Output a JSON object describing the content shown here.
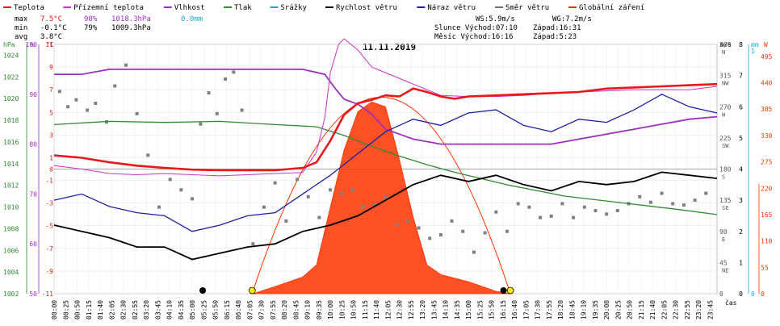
{
  "legend": [
    {
      "label": "Teplota",
      "color": "#e8191b"
    },
    {
      "label": "Přízemní teplota",
      "color": "#cc33cc"
    },
    {
      "label": "Vlhkost",
      "color": "#9d2fbf"
    },
    {
      "label": "Tlak",
      "color": "#2e8b2e"
    },
    {
      "label": "Srážky",
      "color": "#19a9c9"
    },
    {
      "label": "Rychlost větru",
      "color": "#000000"
    },
    {
      "label": "Náraz větru",
      "color": "#1f1fa0"
    },
    {
      "label": "Směr větru",
      "color": "#707070"
    },
    {
      "label": "Globální záření",
      "color": "#ff3300"
    }
  ],
  "stats": {
    "max": {
      "label": "max",
      "temp": "7.5°C",
      "hum": "98%",
      "press": "1018.3hPa",
      "rain": "0.0mm"
    },
    "min": {
      "label": "min",
      "temp": "-0.1°C",
      "hum": "79%",
      "press": "1009.3hPa"
    },
    "avg": {
      "label": "avg",
      "temp": "3.8°C"
    }
  },
  "info": {
    "ws": "WS:5.9m/s",
    "wg": "WG:7.2m/s",
    "sun_rise": "Slunce Východ:07:10",
    "sun_set": "Západ:16:31",
    "moon_rise": "Měsíc  Východ:16:16",
    "moon_set": "Západ:5:23"
  },
  "chart_data": {
    "type": "line",
    "title": "11.11.2019",
    "xlabel": "čas",
    "x_tick_labels": [
      "00:00",
      "00:25",
      "00:50",
      "01:15",
      "01:40",
      "02:05",
      "02:30",
      "02:55",
      "03:20",
      "03:45",
      "04:10",
      "04:35",
      "05:00",
      "05:25",
      "05:50",
      "06:15",
      "06:40",
      "07:05",
      "07:30",
      "07:55",
      "08:20",
      "08:45",
      "09:10",
      "09:35",
      "10:00",
      "10:25",
      "10:50",
      "11:15",
      "11:40",
      "12:05",
      "12:30",
      "12:55",
      "13:20",
      "13:45",
      "14:10",
      "14:35",
      "15:00",
      "15:25",
      "15:50",
      "16:15",
      "16:40",
      "17:05",
      "17:30",
      "17:55",
      "18:20",
      "18:45",
      "19:10",
      "19:35",
      "20:00",
      "20:25",
      "20:50",
      "21:15",
      "21:40",
      "22:05",
      "22:30",
      "22:55",
      "23:20",
      "23:45"
    ],
    "axes": {
      "pressure": {
        "unit": "hPa",
        "ticks": [
          "1024",
          "1022",
          "1020",
          "1018",
          "1016",
          "1014",
          "1012",
          "1010",
          "1008",
          "1006",
          "1004",
          "1002"
        ]
      },
      "humidity": {
        "unit": "%",
        "ticks": [
          "100",
          "90",
          "80",
          "70",
          "60",
          "50"
        ]
      },
      "temperature": {
        "unit": "°C",
        "ticks": [
          "11",
          "9",
          "7",
          "5",
          "3",
          "1",
          "-1",
          "-3",
          "-5",
          "-7",
          "-9",
          "-11"
        ],
        "extra_zero": "0"
      },
      "direction": {
        "unit": "m/s",
        "ticks": [
          "360",
          "315",
          "270",
          "225",
          "180",
          "135",
          "90",
          "45",
          "0"
        ],
        "labels": [
          "N",
          "NW",
          "W",
          "SW",
          "S",
          "SE",
          "E",
          "NE",
          ""
        ]
      },
      "wind": {
        "unit": "m/s",
        "ticks": [
          "8",
          "7",
          "6",
          "5",
          "4",
          "3",
          "2",
          "1",
          "0"
        ]
      },
      "rain": {
        "unit": "mm",
        "ticks": [
          "1",
          "0"
        ]
      },
      "radiation": {
        "unit": "W",
        "ticks": [
          "495",
          "440",
          "385",
          "330",
          "275",
          "220",
          "165",
          "110",
          "55",
          "0"
        ]
      }
    },
    "ranges": {
      "pressure": [
        1002,
        1025
      ],
      "humidity": [
        50,
        100
      ],
      "temperature": [
        -11,
        11
      ],
      "wind": [
        0,
        8
      ],
      "direction": [
        0,
        360
      ],
      "radiation": [
        0,
        520
      ]
    },
    "series": [
      {
        "name": "Teplota",
        "points": [
          [
            0,
            1.2
          ],
          [
            1,
            1.0
          ],
          [
            2,
            0.6
          ],
          [
            3,
            0.3
          ],
          [
            4,
            0.1
          ],
          [
            5,
            -0.05
          ],
          [
            6,
            -0.1
          ],
          [
            7,
            -0.1
          ],
          [
            8,
            -0.1
          ],
          [
            8.5,
            0.0
          ],
          [
            9,
            0.1
          ],
          [
            9.5,
            0.6
          ],
          [
            10,
            2.5
          ],
          [
            10.5,
            4.8
          ],
          [
            11,
            5.8
          ],
          [
            11.5,
            6.1
          ],
          [
            12,
            6.5
          ],
          [
            12.5,
            6.4
          ],
          [
            13,
            7.1
          ],
          [
            13.5,
            6.8
          ],
          [
            14,
            6.4
          ],
          [
            14.5,
            6.2
          ],
          [
            15,
            6.4
          ],
          [
            16,
            6.5
          ],
          [
            17,
            6.6
          ],
          [
            18,
            6.7
          ],
          [
            19,
            6.8
          ],
          [
            20,
            7.1
          ],
          [
            21,
            7.2
          ],
          [
            22,
            7.3
          ],
          [
            23,
            7.4
          ],
          [
            24,
            7.5
          ]
        ]
      },
      {
        "name": "Přízemní teplota",
        "points": [
          [
            0,
            0.3
          ],
          [
            1,
            0.0
          ],
          [
            2,
            -0.4
          ],
          [
            3,
            -0.5
          ],
          [
            4,
            -0.4
          ],
          [
            5,
            -0.5
          ],
          [
            6,
            -0.6
          ],
          [
            7,
            -0.5
          ],
          [
            8,
            -0.4
          ],
          [
            9,
            -0.3
          ],
          [
            9.5,
            1.5
          ],
          [
            9.8,
            4.5
          ],
          [
            10,
            8.5
          ],
          [
            10.3,
            11.0
          ],
          [
            10.5,
            11.5
          ],
          [
            11,
            10.5
          ],
          [
            11.5,
            9.0
          ],
          [
            12,
            8.5
          ],
          [
            12.5,
            8.0
          ],
          [
            13,
            7.5
          ],
          [
            13.5,
            7.0
          ],
          [
            14,
            6.5
          ],
          [
            15,
            6.4
          ],
          [
            16,
            6.4
          ],
          [
            17,
            6.5
          ],
          [
            18,
            6.7
          ],
          [
            19,
            6.8
          ],
          [
            20,
            6.9
          ],
          [
            21,
            7.0
          ],
          [
            22,
            7.0
          ],
          [
            23,
            7.0
          ],
          [
            24,
            7.3
          ]
        ]
      },
      {
        "name": "Vlhkost",
        "points": [
          [
            0,
            94
          ],
          [
            1,
            94
          ],
          [
            2,
            95
          ],
          [
            3,
            95
          ],
          [
            4,
            95
          ],
          [
            5,
            95
          ],
          [
            6,
            95
          ],
          [
            7,
            95
          ],
          [
            8,
            95
          ],
          [
            9,
            95
          ],
          [
            9.8,
            94
          ],
          [
            10.2,
            91
          ],
          [
            10.5,
            89
          ],
          [
            11,
            88
          ],
          [
            11.5,
            86
          ],
          [
            12,
            83
          ],
          [
            12.5,
            82
          ],
          [
            13,
            81
          ],
          [
            14,
            80
          ],
          [
            15,
            80
          ],
          [
            16,
            80
          ],
          [
            17,
            80
          ],
          [
            18,
            80
          ],
          [
            19,
            81
          ],
          [
            20,
            82
          ],
          [
            21,
            83
          ],
          [
            22,
            84
          ],
          [
            23,
            85
          ],
          [
            24,
            85.5
          ]
        ]
      },
      {
        "name": "Tlak",
        "points": [
          [
            0,
            1017.6
          ],
          [
            2,
            1017.9
          ],
          [
            4,
            1017.8
          ],
          [
            6,
            1017.9
          ],
          [
            8,
            1017.6
          ],
          [
            9.5,
            1017.4
          ],
          [
            10.5,
            1016.6
          ],
          [
            11.5,
            1015.6
          ],
          [
            12.5,
            1014.7
          ],
          [
            13.5,
            1013.9
          ],
          [
            14.5,
            1013.2
          ],
          [
            15.5,
            1012.6
          ],
          [
            16.5,
            1012.0
          ],
          [
            17.5,
            1011.5
          ],
          [
            18.5,
            1011.0
          ],
          [
            19.5,
            1010.7
          ],
          [
            20.5,
            1010.4
          ],
          [
            21.5,
            1010.1
          ],
          [
            22.5,
            1009.8
          ],
          [
            24,
            1009.3
          ]
        ]
      },
      {
        "name": "Rychlost větru",
        "points": [
          [
            0,
            2.2
          ],
          [
            1,
            2.0
          ],
          [
            2,
            1.8
          ],
          [
            3,
            1.5
          ],
          [
            4,
            1.5
          ],
          [
            5,
            1.1
          ],
          [
            6,
            1.3
          ],
          [
            7,
            1.5
          ],
          [
            8,
            1.6
          ],
          [
            9,
            2.0
          ],
          [
            10,
            2.2
          ],
          [
            11,
            2.5
          ],
          [
            12,
            3.0
          ],
          [
            13,
            3.5
          ],
          [
            14,
            3.8
          ],
          [
            15,
            3.6
          ],
          [
            16,
            3.8
          ],
          [
            17,
            3.5
          ],
          [
            18,
            3.3
          ],
          [
            19,
            3.6
          ],
          [
            20,
            3.5
          ],
          [
            21,
            3.6
          ],
          [
            22,
            3.9
          ],
          [
            23,
            3.8
          ],
          [
            24,
            3.7
          ]
        ]
      },
      {
        "name": "Náraz větru",
        "points": [
          [
            0,
            3.0
          ],
          [
            1,
            3.2
          ],
          [
            2,
            2.8
          ],
          [
            3,
            2.6
          ],
          [
            4,
            2.5
          ],
          [
            5,
            2.0
          ],
          [
            6,
            2.2
          ],
          [
            7,
            2.5
          ],
          [
            8,
            2.6
          ],
          [
            9,
            3.2
          ],
          [
            10,
            3.8
          ],
          [
            11,
            4.5
          ],
          [
            12,
            5.2
          ],
          [
            13,
            5.6
          ],
          [
            14,
            5.4
          ],
          [
            15,
            5.8
          ],
          [
            16,
            5.9
          ],
          [
            17,
            5.4
          ],
          [
            18,
            5.2
          ],
          [
            19,
            5.6
          ],
          [
            20,
            5.5
          ],
          [
            21,
            5.9
          ],
          [
            22,
            6.4
          ],
          [
            23,
            6.0
          ],
          [
            24,
            5.8
          ]
        ]
      },
      {
        "name": "Globální záření",
        "points": [
          [
            7.2,
            0
          ],
          [
            8,
            15
          ],
          [
            9,
            35
          ],
          [
            9.5,
            60
          ],
          [
            10,
            180
          ],
          [
            10.5,
            300
          ],
          [
            11,
            380
          ],
          [
            11.5,
            400
          ],
          [
            12,
            390
          ],
          [
            12.5,
            280
          ],
          [
            13,
            160
          ],
          [
            13.5,
            60
          ],
          [
            14,
            40
          ],
          [
            15,
            25
          ],
          [
            16,
            5
          ],
          [
            16.5,
            0
          ]
        ]
      }
    ],
    "direction_points": [
      [
        0.2,
        292
      ],
      [
        0.5,
        270
      ],
      [
        0.8,
        280
      ],
      [
        1.2,
        265
      ],
      [
        1.5,
        275
      ],
      [
        1.9,
        248
      ],
      [
        2.2,
        300
      ],
      [
        2.6,
        330
      ],
      [
        3.0,
        260
      ],
      [
        3.4,
        200
      ],
      [
        3.8,
        125
      ],
      [
        4.2,
        165
      ],
      [
        4.6,
        150
      ],
      [
        5.0,
        137
      ],
      [
        5.3,
        245
      ],
      [
        5.6,
        290
      ],
      [
        5.9,
        260
      ],
      [
        6.2,
        310
      ],
      [
        6.5,
        320
      ],
      [
        6.8,
        265
      ],
      [
        7.2,
        72
      ],
      [
        7.6,
        125
      ],
      [
        8.0,
        160
      ],
      [
        8.4,
        105
      ],
      [
        8.8,
        165
      ],
      [
        9.2,
        140
      ],
      [
        9.6,
        110
      ],
      [
        10.0,
        150
      ],
      [
        10.4,
        145
      ],
      [
        10.8,
        150
      ],
      [
        11.2,
        125
      ],
      [
        11.6,
        128
      ],
      [
        12.0,
        140
      ],
      [
        12.4,
        100
      ],
      [
        12.8,
        105
      ],
      [
        13.2,
        95
      ],
      [
        13.6,
        80
      ],
      [
        14.0,
        85
      ],
      [
        14.4,
        105
      ],
      [
        14.8,
        90
      ],
      [
        15.2,
        60
      ],
      [
        15.6,
        88
      ],
      [
        16.0,
        118
      ],
      [
        16.4,
        90
      ],
      [
        16.8,
        130
      ],
      [
        17.2,
        125
      ],
      [
        17.6,
        110
      ],
      [
        18.0,
        112
      ],
      [
        18.4,
        130
      ],
      [
        18.8,
        110
      ],
      [
        19.2,
        125
      ],
      [
        19.6,
        120
      ],
      [
        20.0,
        115
      ],
      [
        20.4,
        120
      ],
      [
        20.8,
        130
      ],
      [
        21.2,
        140
      ],
      [
        21.6,
        132
      ],
      [
        22.0,
        145
      ],
      [
        22.4,
        130
      ],
      [
        22.8,
        128
      ],
      [
        23.2,
        135
      ],
      [
        23.6,
        145
      ]
    ]
  }
}
